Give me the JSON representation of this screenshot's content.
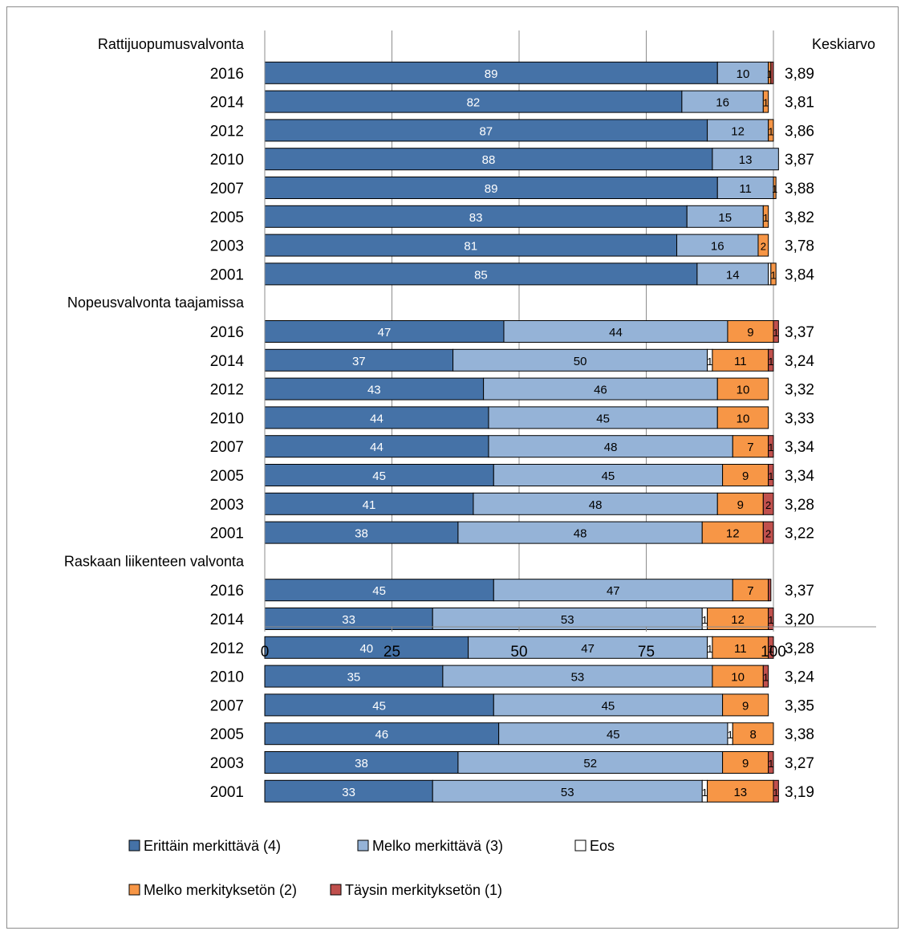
{
  "chart_data": {
    "type": "bar",
    "orientation": "horizontal",
    "stacked": true,
    "xlim": [
      0,
      100
    ],
    "xticks": [
      "0",
      "25",
      "50",
      "75",
      "100"
    ],
    "grid": true,
    "legend_position": "bottom",
    "mean_header": "Keskiarvo",
    "series": [
      {
        "name": "Erittäin merkittävä (4)",
        "color": "#4572a7"
      },
      {
        "name": "Melko merkittävä (3)",
        "color": "#95b3d7"
      },
      {
        "name": "Eos",
        "color": "#ffffff"
      },
      {
        "name": "Melko merkityksetön (2)",
        "color": "#f79646"
      },
      {
        "name": "Täysin merkityksetön (1)",
        "color": "#c0504d"
      }
    ],
    "groups": [
      {
        "name": "Rattijuopumusvalvonta",
        "rows": [
          {
            "year": "2016",
            "values": [
              89,
              10,
              0,
              0.5,
              0.5
            ],
            "labels": [
              "89",
              "10",
              "",
              "1",
              ""
            ],
            "mean": "3,89"
          },
          {
            "year": "2014",
            "values": [
              82,
              16,
              0,
              1,
              0
            ],
            "labels": [
              "82",
              "16",
              "",
              "1",
              ""
            ],
            "mean": "3,81"
          },
          {
            "year": "2012",
            "values": [
              87,
              12,
              0,
              1,
              0
            ],
            "labels": [
              "87",
              "12",
              "",
              "1",
              ""
            ],
            "mean": "3,86"
          },
          {
            "year": "2010",
            "values": [
              88,
              13,
              0,
              0,
              0
            ],
            "labels": [
              "88",
              "13",
              "",
              "",
              ""
            ],
            "mean": "3,87"
          },
          {
            "year": "2007",
            "values": [
              89,
              11,
              0,
              0.5,
              0
            ],
            "labels": [
              "89",
              "11",
              "",
              "1",
              ""
            ],
            "mean": "3,88"
          },
          {
            "year": "2005",
            "values": [
              83,
              15,
              0,
              1,
              0
            ],
            "labels": [
              "83",
              "15",
              "",
              "1",
              ""
            ],
            "mean": "3,82"
          },
          {
            "year": "2003",
            "values": [
              81,
              16,
              0,
              2,
              0
            ],
            "labels": [
              "81",
              "16",
              "",
              "2",
              ""
            ],
            "mean": "3,78"
          },
          {
            "year": "2001",
            "values": [
              85,
              14,
              0.5,
              1,
              0
            ],
            "labels": [
              "85",
              "14",
              "",
              "1",
              ""
            ],
            "mean": "3,84"
          }
        ]
      },
      {
        "name": "Nopeusvalvonta taajamissa",
        "rows": [
          {
            "year": "2016",
            "values": [
              47,
              44,
              0,
              9,
              1
            ],
            "labels": [
              "47",
              "44",
              "",
              "9",
              "1"
            ],
            "mean": "3,37"
          },
          {
            "year": "2014",
            "values": [
              37,
              50,
              1,
              11,
              1
            ],
            "labels": [
              "37",
              "50",
              "1",
              "11",
              "1"
            ],
            "mean": "3,24"
          },
          {
            "year": "2012",
            "values": [
              43,
              46,
              0,
              10,
              0
            ],
            "labels": [
              "43",
              "46",
              "",
              "10",
              ""
            ],
            "mean": "3,32"
          },
          {
            "year": "2010",
            "values": [
              44,
              45,
              0,
              10,
              0
            ],
            "labels": [
              "44",
              "45",
              "",
              "10",
              ""
            ],
            "mean": "3,33"
          },
          {
            "year": "2007",
            "values": [
              44,
              48,
              0,
              7,
              1
            ],
            "labels": [
              "44",
              "48",
              "",
              "7",
              "1"
            ],
            "mean": "3,34"
          },
          {
            "year": "2005",
            "values": [
              45,
              45,
              0,
              9,
              1
            ],
            "labels": [
              "45",
              "45",
              "",
              "9",
              "1"
            ],
            "mean": "3,34"
          },
          {
            "year": "2003",
            "values": [
              41,
              48,
              0,
              9,
              2
            ],
            "labels": [
              "41",
              "48",
              "",
              "9",
              "2"
            ],
            "mean": "3,28"
          },
          {
            "year": "2001",
            "values": [
              38,
              48,
              0,
              12,
              2
            ],
            "labels": [
              "38",
              "48",
              "",
              "12",
              "2"
            ],
            "mean": "3,22"
          }
        ]
      },
      {
        "name": "Raskaan liikenteen valvonta",
        "rows": [
          {
            "year": "2016",
            "values": [
              45,
              47,
              0,
              7,
              0.5
            ],
            "labels": [
              "45",
              "47",
              "",
              "7",
              ""
            ],
            "mean": "3,37"
          },
          {
            "year": "2014",
            "values": [
              33,
              53,
              1,
              12,
              1
            ],
            "labels": [
              "33",
              "53",
              "1",
              "12",
              "1"
            ],
            "mean": "3,20"
          },
          {
            "year": "2012",
            "values": [
              40,
              47,
              1,
              11,
              1
            ],
            "labels": [
              "40",
              "47",
              "1",
              "11",
              "1"
            ],
            "mean": "3,28"
          },
          {
            "year": "2010",
            "values": [
              35,
              53,
              0,
              10,
              1
            ],
            "labels": [
              "35",
              "53",
              "",
              "10",
              "1"
            ],
            "mean": "3,24"
          },
          {
            "year": "2007",
            "values": [
              45,
              45,
              0,
              9,
              0
            ],
            "labels": [
              "45",
              "45",
              "",
              "9",
              ""
            ],
            "mean": "3,35"
          },
          {
            "year": "2005",
            "values": [
              46,
              45,
              1,
              8,
              0
            ],
            "labels": [
              "46",
              "45",
              "1",
              "8",
              ""
            ],
            "mean": "3,38"
          },
          {
            "year": "2003",
            "values": [
              38,
              52,
              0,
              9,
              1
            ],
            "labels": [
              "38",
              "52",
              "",
              "9",
              "1"
            ],
            "mean": "3,27"
          },
          {
            "year": "2001",
            "values": [
              33,
              53,
              1,
              13,
              1
            ],
            "labels": [
              "33",
              "53",
              "1",
              "13",
              "1"
            ],
            "mean": "3,19"
          }
        ]
      }
    ]
  }
}
